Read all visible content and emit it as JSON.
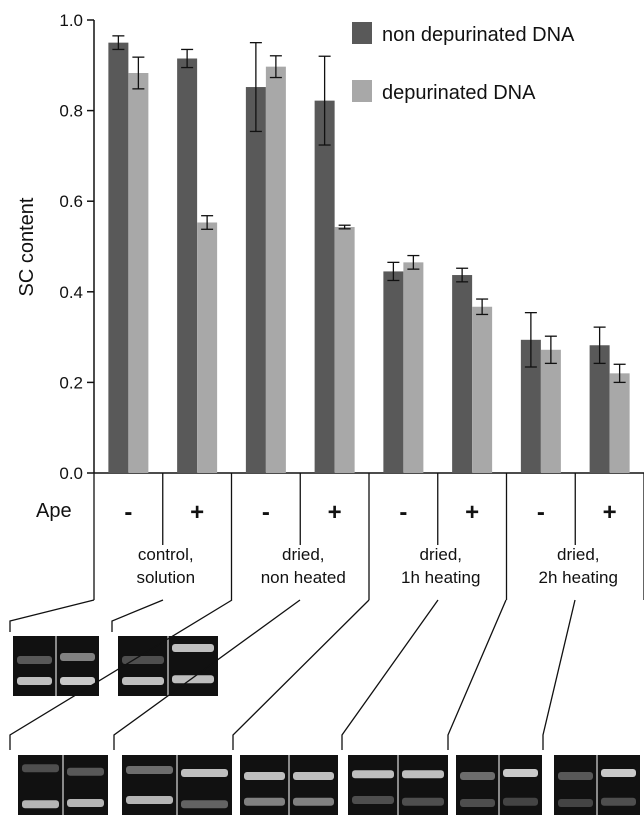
{
  "chart_data": {
    "type": "bar",
    "ylabel": "SC content",
    "ylim": [
      0,
      1.0
    ],
    "yticks": [
      "0.0",
      "0.2",
      "0.4",
      "0.6",
      "0.8",
      "1.0"
    ],
    "categories": [
      "-",
      "+",
      "-",
      "+",
      "-",
      "+",
      "-",
      "+"
    ],
    "row_label": "Ape",
    "groups": [
      [
        "control,",
        "solution"
      ],
      [
        "dried,",
        "non heated"
      ],
      [
        "dried,",
        "1h heating"
      ],
      [
        "dried,",
        "2h heating"
      ]
    ],
    "series": [
      {
        "name": "non depurinated DNA",
        "color": "#595959",
        "values": [
          0.95,
          0.915,
          0.852,
          0.822,
          0.445,
          0.437,
          0.294,
          0.282
        ],
        "errors": [
          0.015,
          0.02,
          0.098,
          0.098,
          0.02,
          0.015,
          0.06,
          0.04
        ]
      },
      {
        "name": "depurinated DNA",
        "color": "#a8a8a8",
        "values": [
          0.883,
          0.553,
          0.897,
          0.543,
          0.465,
          0.367,
          0.272,
          0.22
        ],
        "errors": [
          0.035,
          0.015,
          0.024,
          0.004,
          0.015,
          0.017,
          0.03,
          0.02
        ]
      }
    ],
    "legend_position": "top-right",
    "grid": false
  },
  "gel_images": {
    "count_top": 2,
    "count_bottom": 6
  }
}
